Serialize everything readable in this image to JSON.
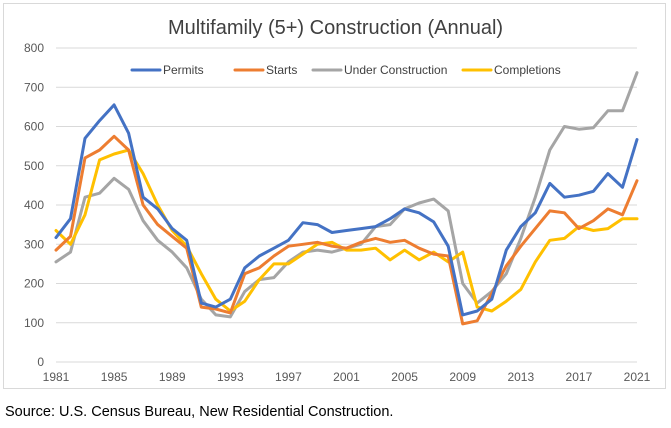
{
  "chart_data": {
    "type": "line",
    "title": "Multifamily (5+) Construction (Annual)",
    "xlabel": "",
    "ylabel": "",
    "ylim": [
      0,
      800
    ],
    "yticks": [
      0,
      100,
      200,
      300,
      400,
      500,
      600,
      700,
      800
    ],
    "xlim": [
      1981,
      2021
    ],
    "xticks": [
      1981,
      1985,
      1989,
      1993,
      1997,
      2001,
      2005,
      2009,
      2013,
      2017,
      2021
    ],
    "grid": true,
    "legend_position": "top",
    "x": [
      1981,
      1982,
      1983,
      1984,
      1985,
      1986,
      1987,
      1988,
      1989,
      1990,
      1991,
      1992,
      1993,
      1994,
      1995,
      1996,
      1997,
      1998,
      1999,
      2000,
      2001,
      2002,
      2003,
      2004,
      2005,
      2006,
      2007,
      2008,
      2009,
      2010,
      2011,
      2012,
      2013,
      2014,
      2015,
      2016,
      2017,
      2018,
      2019,
      2020,
      2021
    ],
    "series": [
      {
        "name": "Permits",
        "color": "#4472c4",
        "values": [
          317,
          365,
          570,
          615,
          655,
          583,
          420,
          390,
          340,
          310,
          150,
          140,
          160,
          240,
          270,
          290,
          310,
          355,
          350,
          330,
          335,
          340,
          345,
          365,
          390,
          380,
          357,
          295,
          120,
          130,
          160,
          285,
          345,
          380,
          455,
          420,
          425,
          435,
          480,
          445,
          567
        ]
      },
      {
        "name": "Starts",
        "color": "#ed7d31",
        "values": [
          285,
          320,
          520,
          540,
          575,
          540,
          400,
          350,
          320,
          290,
          140,
          135,
          125,
          225,
          240,
          270,
          295,
          300,
          305,
          295,
          290,
          305,
          315,
          305,
          310,
          290,
          275,
          270,
          97,
          105,
          175,
          245,
          295,
          340,
          385,
          380,
          340,
          360,
          390,
          375,
          462
        ]
      },
      {
        "name": "Under Construction",
        "color": "#a5a5a5",
        "values": [
          255,
          280,
          420,
          430,
          468,
          440,
          360,
          310,
          280,
          240,
          160,
          120,
          115,
          180,
          210,
          215,
          255,
          280,
          285,
          280,
          290,
          300,
          345,
          350,
          390,
          405,
          415,
          385,
          200,
          150,
          180,
          225,
          315,
          420,
          540,
          600,
          593,
          597,
          640,
          640,
          737
        ]
      },
      {
        "name": "Completions",
        "color": "#ffc000",
        "values": [
          335,
          300,
          375,
          515,
          530,
          540,
          480,
          400,
          335,
          295,
          225,
          160,
          130,
          155,
          210,
          250,
          250,
          275,
          300,
          305,
          285,
          285,
          290,
          260,
          285,
          260,
          280,
          255,
          280,
          140,
          130,
          155,
          185,
          255,
          310,
          315,
          345,
          335,
          340,
          365,
          365
        ]
      }
    ]
  },
  "footer": {
    "source": "Source: U.S. Census Bureau, New Residential Construction."
  }
}
